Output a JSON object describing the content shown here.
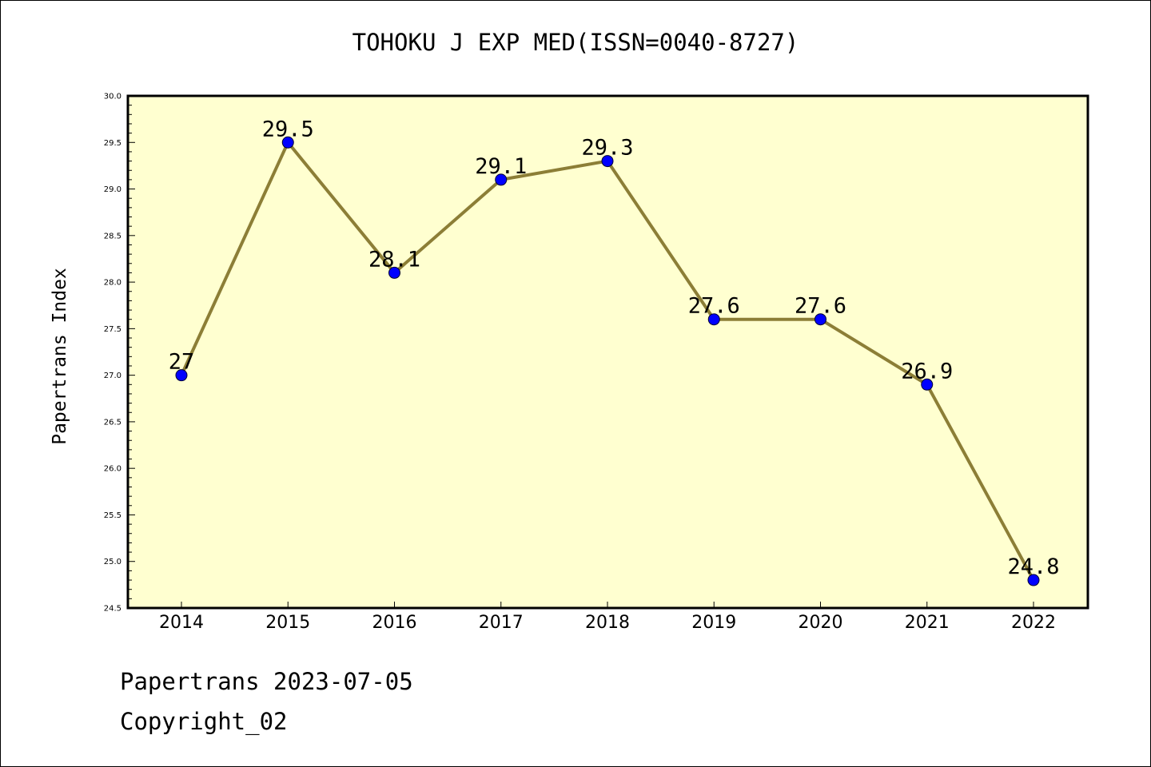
{
  "chart_data": {
    "type": "line",
    "title": "TOHOKU J EXP MED(ISSN=0040-8727)",
    "xlabel": "",
    "ylabel": "Papertrans Index",
    "x": [
      "2014",
      "2015",
      "2016",
      "2017",
      "2018",
      "2019",
      "2020",
      "2021",
      "2022"
    ],
    "series": [
      {
        "values": [
          27.0,
          29.5,
          28.1,
          29.1,
          29.3,
          27.6,
          27.6,
          26.9,
          24.8
        ],
        "data_labels": [
          "27",
          "29.5",
          "28.1",
          "29.1",
          "29.3",
          "27.6",
          "27.6",
          "26.9",
          "24.8"
        ],
        "line_color": "#8c7e36",
        "marker_color": "#0000ff"
      }
    ],
    "ylim": [
      24.5,
      30.0
    ],
    "yticks": [
      "24.5",
      "25.0",
      "25.5",
      "26.0",
      "26.5",
      "27.0",
      "27.5",
      "28.0",
      "28.5",
      "29.0",
      "29.5",
      "30.0"
    ],
    "grid": false,
    "plot_background": "#ffffd0"
  },
  "footer": {
    "line1": "Papertrans 2023-07-05",
    "line2": "Copyright_02"
  }
}
